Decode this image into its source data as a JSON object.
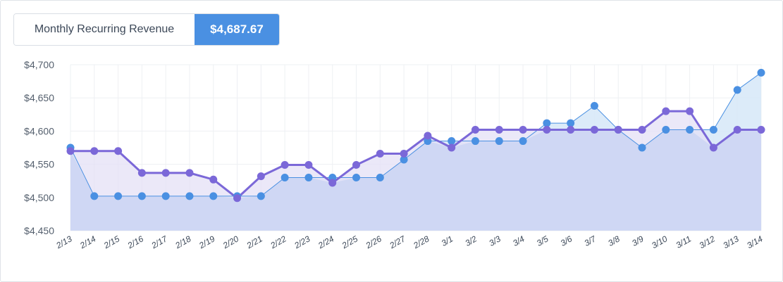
{
  "metric": {
    "label": "Monthly Recurring Revenue",
    "value": "$4,687.67"
  },
  "colors": {
    "blue_series": "#4a90e2",
    "purple_series": "#7b68d8",
    "blue_fill": "#d6e8f8",
    "purple_fill": "#e4e0f6",
    "overlap_fill": "#cdd6f3",
    "grid": "#eef0f3",
    "accent": "#4a90e2"
  },
  "chart_data": {
    "type": "area",
    "categories": [
      "2/13",
      "2/14",
      "2/15",
      "2/16",
      "2/17",
      "2/18",
      "2/19",
      "2/20",
      "2/21",
      "2/22",
      "2/23",
      "2/24",
      "2/25",
      "2/26",
      "2/27",
      "2/28",
      "3/1",
      "3/2",
      "3/3",
      "3/4",
      "3/5",
      "3/6",
      "3/7",
      "3/8",
      "3/9",
      "3/10",
      "3/11",
      "3/12",
      "3/13",
      "3/14"
    ],
    "series": [
      {
        "color_key": "blue_series",
        "values": [
          4575,
          4502,
          4502,
          4502,
          4502,
          4502,
          4502,
          4502,
          4502,
          4530,
          4530,
          4530,
          4530,
          4530,
          4557,
          4585,
          4585,
          4585,
          4585,
          4585,
          4612,
          4612,
          4638,
          4602,
          4575,
          4602,
          4602,
          4602,
          4662,
          4688
        ]
      },
      {
        "color_key": "purple_series",
        "values": [
          4570,
          4570,
          4570,
          4537,
          4537,
          4537,
          4527,
          4499,
          4532,
          4549,
          4549,
          4522,
          4549,
          4566,
          4566,
          4593,
          4575,
          4602,
          4602,
          4602,
          4602,
          4602,
          4602,
          4602,
          4602,
          4630,
          4630,
          4575,
          4602,
          4602
        ]
      }
    ],
    "y_ticks": [
      "$4,450",
      "$4,500",
      "$4,550",
      "$4,600",
      "$4,650",
      "$4,700"
    ],
    "ylim": [
      4450,
      4700
    ],
    "grid": true,
    "legend": "none"
  }
}
